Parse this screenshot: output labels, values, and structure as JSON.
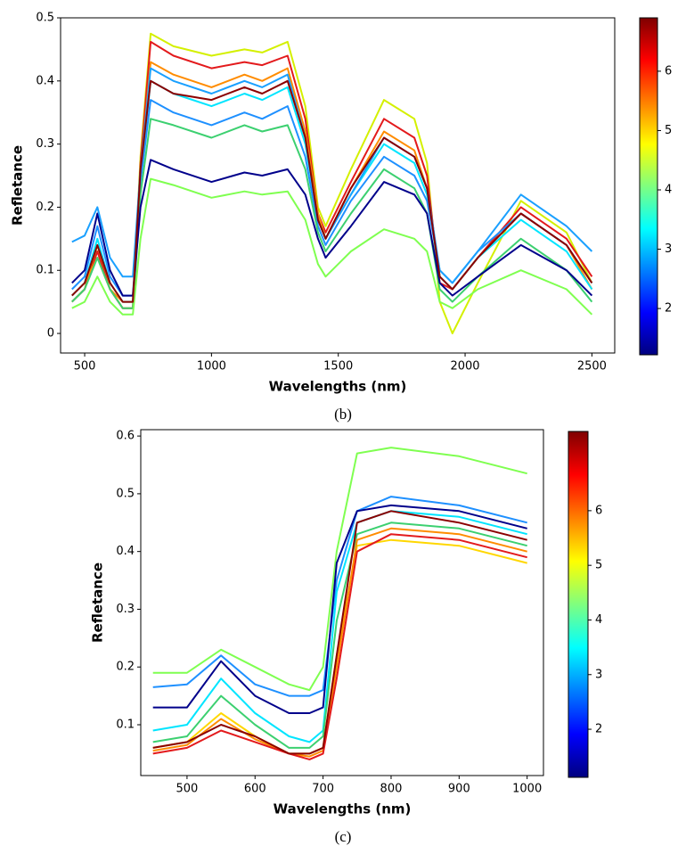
{
  "chart_data": [
    {
      "type": "line",
      "caption": "(b)",
      "x_label": "Wavelengths (nm)",
      "y_label": "Refletance",
      "x": [
        450,
        500,
        550,
        600,
        650,
        690,
        720,
        760,
        850,
        1000,
        1130,
        1200,
        1300,
        1370,
        1420,
        1450,
        1550,
        1680,
        1800,
        1850,
        1900,
        1950,
        2050,
        2220,
        2400,
        2500
      ],
      "xlim": [
        405,
        2590
      ],
      "xticks": [
        500,
        1000,
        1500,
        2000,
        2500
      ],
      "ylim": [
        -0.031,
        0.5
      ],
      "yticks": [
        0.0,
        0.1,
        0.2,
        0.3,
        0.4,
        0.5
      ],
      "series": [
        {
          "color": "#d4f000",
          "values": [
            0.05,
            0.07,
            0.14,
            0.07,
            0.04,
            0.04,
            0.28,
            0.475,
            0.455,
            0.44,
            0.45,
            0.445,
            0.462,
            0.36,
            0.2,
            0.17,
            0.26,
            0.37,
            0.34,
            0.27,
            0.05,
            0.0,
            0.08,
            0.21,
            0.16,
            0.08
          ]
        },
        {
          "color": "#e31a1c",
          "values": [
            0.05,
            0.07,
            0.13,
            0.07,
            0.04,
            0.04,
            0.27,
            0.462,
            0.44,
            0.42,
            0.43,
            0.425,
            0.44,
            0.34,
            0.19,
            0.16,
            0.24,
            0.34,
            0.31,
            0.25,
            0.08,
            0.07,
            0.12,
            0.2,
            0.15,
            0.09
          ]
        },
        {
          "color": "#ff8c00",
          "values": [
            0.06,
            0.08,
            0.12,
            0.07,
            0.05,
            0.05,
            0.26,
            0.43,
            0.41,
            0.39,
            0.41,
            0.4,
            0.42,
            0.32,
            0.19,
            0.15,
            0.23,
            0.32,
            0.29,
            0.23,
            0.09,
            0.07,
            0.12,
            0.19,
            0.14,
            0.07
          ]
        },
        {
          "color": "#00e5ff",
          "values": [
            0.06,
            0.08,
            0.15,
            0.08,
            0.05,
            0.05,
            0.25,
            0.4,
            0.38,
            0.36,
            0.38,
            0.37,
            0.39,
            0.3,
            0.18,
            0.15,
            0.22,
            0.3,
            0.27,
            0.22,
            0.09,
            0.07,
            0.12,
            0.18,
            0.13,
            0.07
          ]
        },
        {
          "color": "#1e90ff",
          "values": [
            0.07,
            0.09,
            0.17,
            0.09,
            0.06,
            0.06,
            0.24,
            0.37,
            0.35,
            0.33,
            0.35,
            0.34,
            0.36,
            0.28,
            0.17,
            0.14,
            0.21,
            0.28,
            0.25,
            0.21,
            0.1,
            0.08,
            0.13,
            0.19,
            0.14,
            0.08
          ]
        },
        {
          "color": "#3cd070",
          "values": [
            0.05,
            0.07,
            0.12,
            0.07,
            0.04,
            0.04,
            0.22,
            0.34,
            0.33,
            0.31,
            0.33,
            0.32,
            0.33,
            0.26,
            0.16,
            0.13,
            0.19,
            0.26,
            0.23,
            0.19,
            0.07,
            0.05,
            0.09,
            0.15,
            0.1,
            0.05
          ]
        },
        {
          "color": "#00008b",
          "values": [
            0.08,
            0.1,
            0.19,
            0.1,
            0.06,
            0.06,
            0.2,
            0.275,
            0.26,
            0.24,
            0.255,
            0.25,
            0.26,
            0.22,
            0.15,
            0.12,
            0.17,
            0.24,
            0.22,
            0.19,
            0.08,
            0.06,
            0.09,
            0.14,
            0.1,
            0.06
          ]
        },
        {
          "color": "#7fff50",
          "values": [
            0.04,
            0.05,
            0.09,
            0.05,
            0.03,
            0.03,
            0.15,
            0.245,
            0.235,
            0.215,
            0.225,
            0.22,
            0.225,
            0.18,
            0.11,
            0.09,
            0.13,
            0.165,
            0.15,
            0.13,
            0.05,
            0.04,
            0.07,
            0.1,
            0.07,
            0.03
          ]
        },
        {
          "color": "#1aa0ff",
          "values": [
            0.145,
            0.155,
            0.2,
            0.12,
            0.09,
            0.09,
            0.26,
            0.42,
            0.4,
            0.38,
            0.4,
            0.39,
            0.41,
            0.31,
            0.18,
            0.15,
            0.22,
            0.31,
            0.28,
            0.23,
            0.1,
            0.08,
            0.13,
            0.22,
            0.17,
            0.13
          ]
        },
        {
          "color": "#8b0000",
          "values": [
            0.06,
            0.08,
            0.14,
            0.08,
            0.05,
            0.05,
            0.26,
            0.4,
            0.38,
            0.37,
            0.39,
            0.38,
            0.4,
            0.31,
            0.18,
            0.15,
            0.23,
            0.31,
            0.28,
            0.23,
            0.09,
            0.07,
            0.12,
            0.19,
            0.14,
            0.08
          ]
        }
      ],
      "colorbar": {
        "lim": [
          1.22,
          6.9
        ],
        "ticks": [
          2,
          3,
          4,
          5,
          6
        ],
        "colormap": [
          "#00007f",
          "#0000ff",
          "#007fff",
          "#00ffff",
          "#7fff7f",
          "#ffff00",
          "#ff7f00",
          "#ff0000",
          "#7f0000"
        ]
      }
    },
    {
      "type": "line",
      "caption": "(c)",
      "x_label": "Wavelengths (nm)",
      "y_label": "Refletance",
      "x": [
        450,
        500,
        550,
        600,
        650,
        680,
        700,
        720,
        750,
        800,
        900,
        1000
      ],
      "xlim": [
        432,
        1024
      ],
      "xticks": [
        500,
        600,
        700,
        800,
        900,
        1000
      ],
      "ylim": [
        0.012,
        0.611
      ],
      "yticks": [
        0.1,
        0.2,
        0.3,
        0.4,
        0.5,
        0.6
      ],
      "series": [
        {
          "color": "#7fff50",
          "values": [
            0.19,
            0.19,
            0.23,
            0.2,
            0.17,
            0.16,
            0.2,
            0.4,
            0.57,
            0.58,
            0.565,
            0.535
          ]
        },
        {
          "color": "#1e90ff",
          "values": [
            0.165,
            0.17,
            0.22,
            0.17,
            0.15,
            0.15,
            0.16,
            0.35,
            0.47,
            0.495,
            0.48,
            0.45
          ]
        },
        {
          "color": "#00008b",
          "values": [
            0.13,
            0.13,
            0.21,
            0.15,
            0.12,
            0.12,
            0.13,
            0.38,
            0.47,
            0.48,
            0.47,
            0.44
          ]
        },
        {
          "color": "#00e5ff",
          "values": [
            0.09,
            0.1,
            0.18,
            0.12,
            0.08,
            0.07,
            0.09,
            0.33,
            0.45,
            0.47,
            0.46,
            0.43
          ]
        },
        {
          "color": "#3cd070",
          "values": [
            0.07,
            0.08,
            0.15,
            0.1,
            0.06,
            0.06,
            0.08,
            0.28,
            0.43,
            0.45,
            0.44,
            0.41
          ]
        },
        {
          "color": "#ffd700",
          "values": [
            0.06,
            0.07,
            0.12,
            0.08,
            0.05,
            0.05,
            0.06,
            0.22,
            0.41,
            0.42,
            0.41,
            0.38
          ]
        },
        {
          "color": "#ff8c00",
          "values": [
            0.055,
            0.065,
            0.11,
            0.075,
            0.05,
            0.045,
            0.055,
            0.2,
            0.42,
            0.44,
            0.43,
            0.4
          ]
        },
        {
          "color": "#e31a1c",
          "values": [
            0.05,
            0.06,
            0.09,
            0.07,
            0.05,
            0.04,
            0.05,
            0.18,
            0.4,
            0.43,
            0.42,
            0.39
          ]
        },
        {
          "color": "#8b0000",
          "values": [
            0.06,
            0.07,
            0.1,
            0.08,
            0.05,
            0.05,
            0.06,
            0.22,
            0.45,
            0.47,
            0.45,
            0.42
          ]
        }
      ],
      "colorbar": {
        "lim": [
          1.12,
          7.45
        ],
        "ticks": [
          2,
          3,
          4,
          5,
          6
        ],
        "colormap": [
          "#00007f",
          "#0000ff",
          "#007fff",
          "#00ffff",
          "#7fff7f",
          "#ffff00",
          "#ff7f00",
          "#ff0000",
          "#7f0000"
        ]
      }
    }
  ]
}
